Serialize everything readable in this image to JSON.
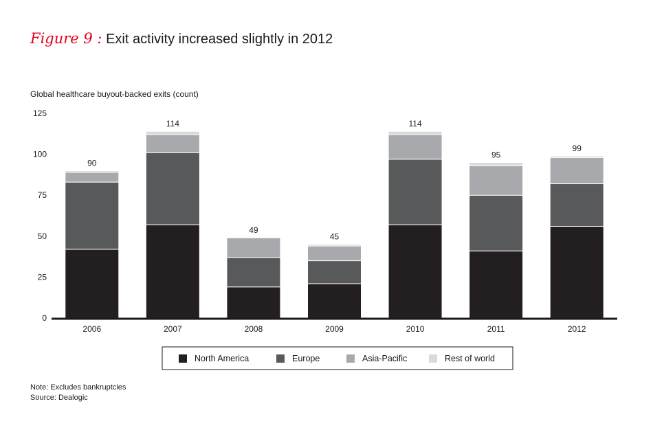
{
  "figure": {
    "label": "Figure 9 :",
    "title": "Exit activity increased slightly in 2012"
  },
  "notes": {
    "note": "Note: Excludes bankruptcies",
    "source": "Source: Dealogic"
  },
  "colors": {
    "North America": "#231f20",
    "Europe": "#58595b",
    "Asia-Pacific": "#a7a9ac",
    "Rest of world": "#d9dadb"
  },
  "chart_data": {
    "type": "bar",
    "stacked": true,
    "title": "Exit activity increased slightly in 2012",
    "ylabel": "Global healthcare buyout-backed exits (count)",
    "xlabel": "",
    "ylim": [
      0,
      125
    ],
    "yticks": [
      0,
      25,
      50,
      75,
      100,
      125
    ],
    "categories": [
      "2006",
      "2007",
      "2008",
      "2009",
      "2010",
      "2011",
      "2012"
    ],
    "series": [
      {
        "name": "North America",
        "values": [
          42,
          57,
          19,
          21,
          57,
          41,
          56
        ]
      },
      {
        "name": "Europe",
        "values": [
          41,
          44,
          18,
          14,
          40,
          34,
          26
        ]
      },
      {
        "name": "Asia-Pacific",
        "values": [
          6,
          11,
          12,
          9,
          15,
          18,
          16
        ]
      },
      {
        "name": "Rest of world",
        "values": [
          1,
          2,
          0,
          1,
          2,
          2,
          1
        ]
      }
    ],
    "totals": [
      90,
      114,
      49,
      45,
      114,
      95,
      99
    ],
    "legend": [
      "North America",
      "Europe",
      "Asia-Pacific",
      "Rest of world"
    ],
    "legend_position": "bottom"
  }
}
